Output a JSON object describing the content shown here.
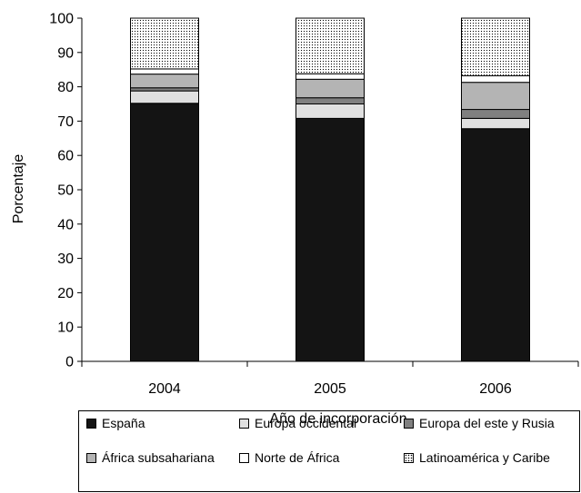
{
  "chart_data": {
    "type": "bar",
    "stacked": true,
    "categories": [
      "2004",
      "2005",
      "2006"
    ],
    "series": [
      {
        "name": "España",
        "color": "#141414",
        "pattern": "solid",
        "values": [
          75.2,
          70.8,
          67.8
        ]
      },
      {
        "name": "Europa occidental",
        "color": "#e0e0e0",
        "pattern": "solid",
        "values": [
          3.6,
          4.2,
          3.0
        ]
      },
      {
        "name": "Europa del este y Rusia",
        "color": "#808080",
        "pattern": "solid",
        "values": [
          0.9,
          1.8,
          2.6
        ]
      },
      {
        "name": "África subsahariana",
        "color": "#b4b4b4",
        "pattern": "solid",
        "values": [
          4.0,
          5.4,
          7.9
        ]
      },
      {
        "name": "Norte de África",
        "color": "#ffffff",
        "pattern": "solid",
        "values": [
          1.5,
          1.6,
          1.9
        ]
      },
      {
        "name": "Latinoamérica y Caribe",
        "color": "#ffffff",
        "pattern": "dots",
        "values": [
          14.8,
          16.2,
          16.8
        ]
      }
    ],
    "xlabel": "Año de incorporación",
    "ylabel": "Porcentaje",
    "ylim": [
      0,
      100
    ],
    "yticks": [
      "0",
      "10",
      "20",
      "30",
      "40",
      "50",
      "60",
      "70",
      "80",
      "90",
      "100"
    ],
    "grid": false,
    "legend": {
      "placement": "bottom",
      "items": [
        {
          "label": "España"
        },
        {
          "label": "Europa occidental"
        },
        {
          "label": "Europa del este y Rusia"
        },
        {
          "label": "África subsahariana"
        },
        {
          "label": "Norte de África"
        },
        {
          "label": "Latinoamérica y Caribe"
        }
      ]
    }
  }
}
